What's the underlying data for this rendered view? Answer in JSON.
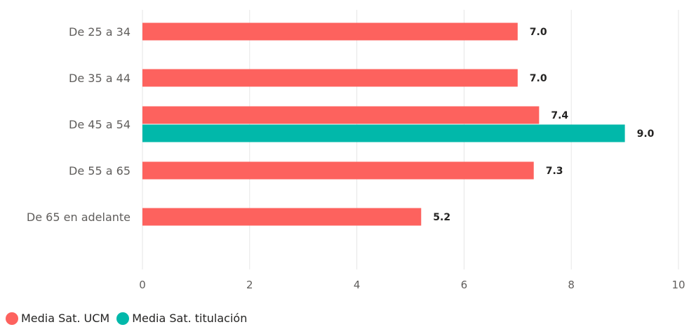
{
  "chart_data": {
    "type": "bar",
    "orientation": "horizontal",
    "categories": [
      "De 25 a 34",
      "De 35 a 44",
      "De 45 a 54",
      "De 55 a 65",
      "De 65 en adelante"
    ],
    "series": [
      {
        "name": "Media Sat. UCM",
        "color": "#fd625e",
        "values": [
          7.0,
          7.0,
          7.4,
          7.3,
          5.2
        ]
      },
      {
        "name": "Media Sat. titulación",
        "color": "#01b8aa",
        "values": [
          null,
          null,
          9.0,
          null,
          null
        ]
      }
    ],
    "xlim": [
      0,
      10
    ],
    "xticks": [
      0,
      2,
      4,
      6,
      8,
      10
    ],
    "grid": true,
    "legend_position": "bottom-left",
    "data_label_format": "0.0"
  }
}
